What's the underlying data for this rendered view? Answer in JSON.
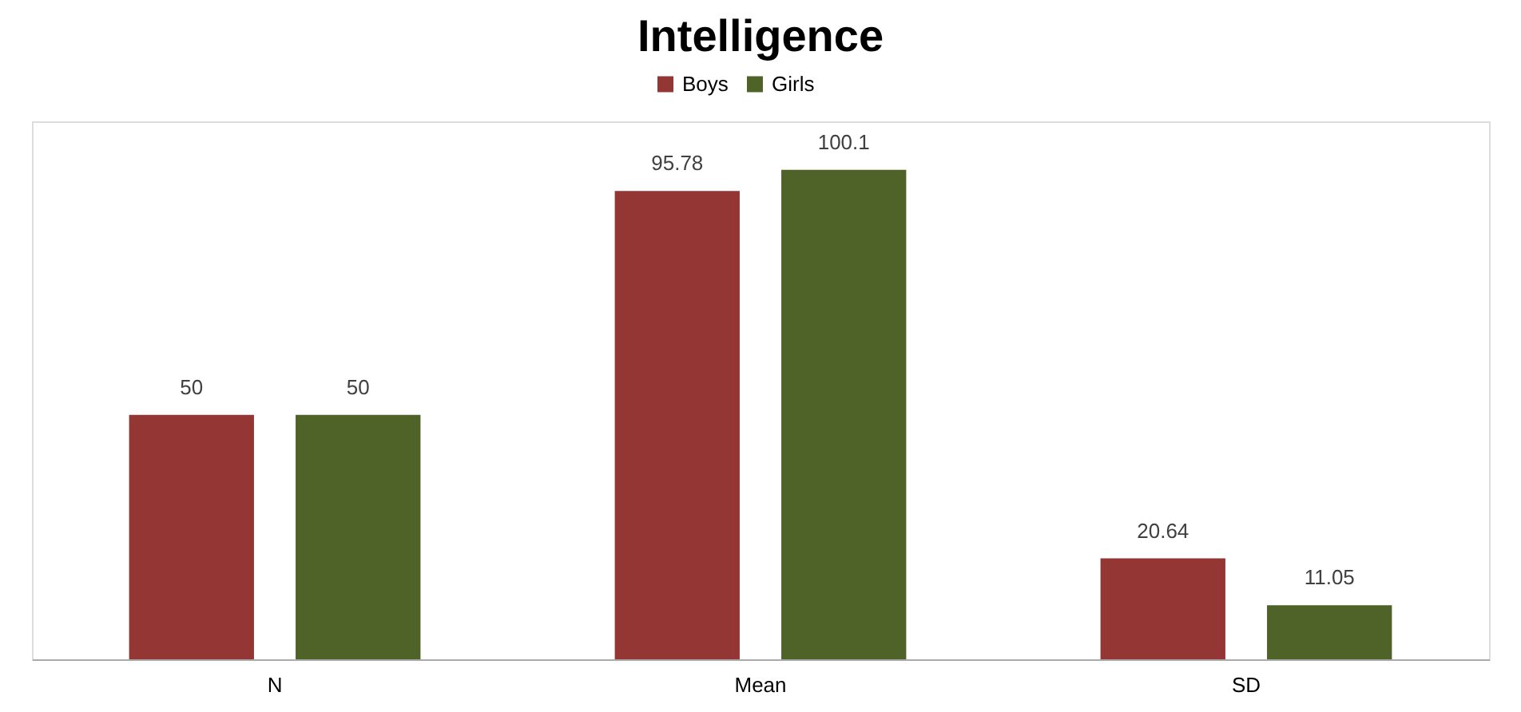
{
  "chart_data": {
    "type": "bar",
    "title": "Intelligence",
    "categories": [
      "N",
      "Mean",
      "SD"
    ],
    "series": [
      {
        "name": "Boys",
        "color": "#943634",
        "values": [
          50,
          95.78,
          20.64
        ]
      },
      {
        "name": "Girls",
        "color": "#4f6228",
        "values": [
          50,
          100.1,
          11.05
        ]
      }
    ],
    "data_labels": true,
    "legend": "top"
  }
}
